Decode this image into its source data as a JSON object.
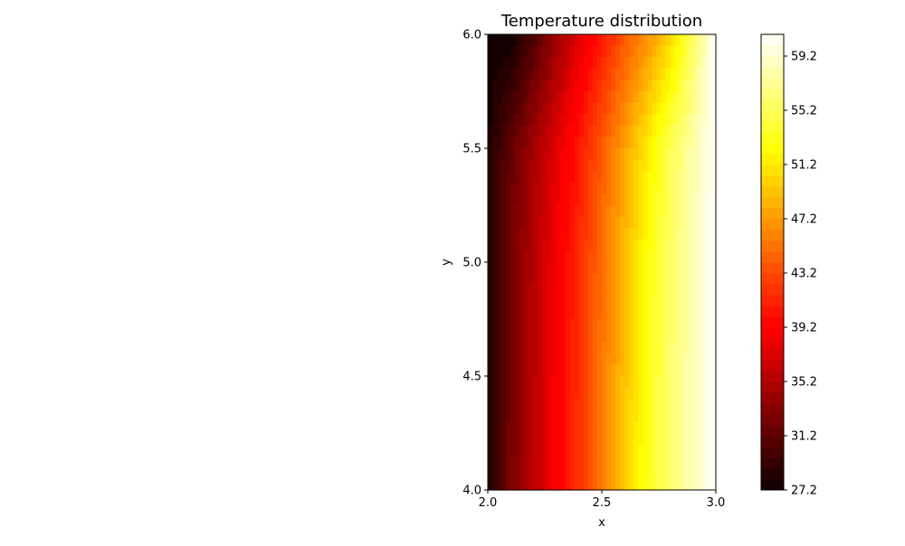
{
  "chart_data": {
    "type": "heatmap",
    "subtype": "filled-contour",
    "title": "Temperature distribution",
    "xlabel": "x",
    "ylabel": "y",
    "xlim": [
      2.0,
      3.0
    ],
    "ylim": [
      4.0,
      6.0
    ],
    "x_ticks": [
      "2.0",
      "2.5",
      "3.0"
    ],
    "y_ticks": [
      "4.0",
      "4.5",
      "5.0",
      "5.5",
      "6.0"
    ],
    "colormap": "hot",
    "colorbar": {
      "min": 27.2,
      "max": 60.8,
      "ticks": [
        "27.2",
        "31.2",
        "35.2",
        "39.2",
        "43.2",
        "47.2",
        "51.2",
        "55.2",
        "59.2"
      ],
      "levels": 42
    },
    "field": {
      "x": [
        2.0,
        2.1,
        2.2,
        2.3,
        2.4,
        2.5,
        2.6,
        2.7,
        2.8,
        2.9,
        3.0
      ],
      "y": [
        4.0,
        4.5,
        5.0,
        5.5,
        6.0
      ],
      "z": [
        [
          28.0,
          32.5,
          35.8,
          38.8,
          42.0,
          45.5,
          49.5,
          53.2,
          56.0,
          58.5,
          60.8
        ],
        [
          28.0,
          32.4,
          35.7,
          38.7,
          41.9,
          45.3,
          49.2,
          53.0,
          55.8,
          58.4,
          60.8
        ],
        [
          28.0,
          32.2,
          35.5,
          38.5,
          41.6,
          45.0,
          48.8,
          52.6,
          55.6,
          58.3,
          60.8
        ],
        [
          27.8,
          31.4,
          34.6,
          37.6,
          40.7,
          44.0,
          47.6,
          51.4,
          55.0,
          58.0,
          60.8
        ],
        [
          27.5,
          27.2,
          30.5,
          34.0,
          37.5,
          40.6,
          43.8,
          46.8,
          50.0,
          55.5,
          60.8
        ]
      ]
    }
  }
}
